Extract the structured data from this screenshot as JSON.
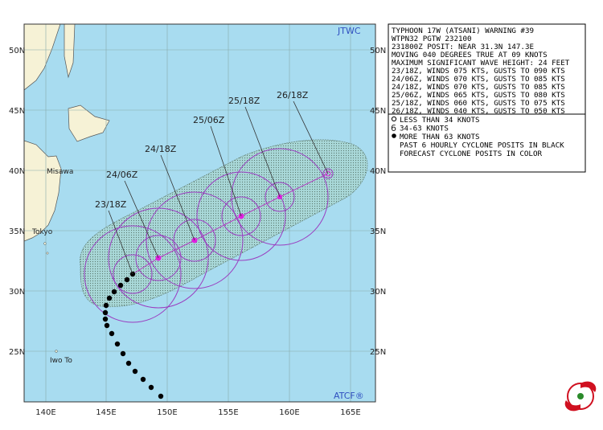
{
  "map": {
    "latitude_labels": [
      "50N",
      "45N",
      "40N",
      "35N",
      "30N",
      "25N"
    ],
    "longitude_labels": [
      "140E",
      "145E",
      "150E",
      "155E",
      "160E",
      "165E"
    ],
    "places": [
      "Misawa",
      "Tokyo",
      "Iwo To"
    ],
    "forecast_times": [
      "23/18Z",
      "24/06Z",
      "24/18Z",
      "25/06Z",
      "25/18Z",
      "26/18Z"
    ],
    "source_top": "JTWC",
    "source_bottom": "ATCF®"
  },
  "warning": {
    "lines": [
      "TYPHOON 17W (ATSANI) WARNING #39",
      "WTPN32 PGTW 232100",
      "231800Z POSIT: NEAR 31.3N 147.3E",
      "MOVING 040 DEGREES TRUE AT 09 KNOTS",
      "MAXIMUM SIGNIFICANT WAVE HEIGHT: 24 FEET",
      "23/18Z, WINDS 075 KTS, GUSTS TO 090 KTS",
      "24/06Z, WINDS 070 KTS, GUSTS TO 085 KTS",
      "24/18Z, WINDS 070 KTS, GUSTS TO 085 KTS",
      "25/06Z, WINDS 065 KTS, GUSTS TO 080 KTS",
      "25/18Z, WINDS 060 KTS, GUSTS TO 075 KTS",
      "26/18Z, WINDS 040 KTS, GUSTS TO 050 KTS"
    ]
  },
  "legend": {
    "lines": [
      "LESS THAN 34 KNOTS",
      "34-63 KNOTS",
      "MORE THAN 63 KNOTS",
      "PAST 6 HOURLY CYCLONE POSITS IN BLACK",
      "FORECAST CYCLONE POSITS IN COLOR"
    ]
  }
}
